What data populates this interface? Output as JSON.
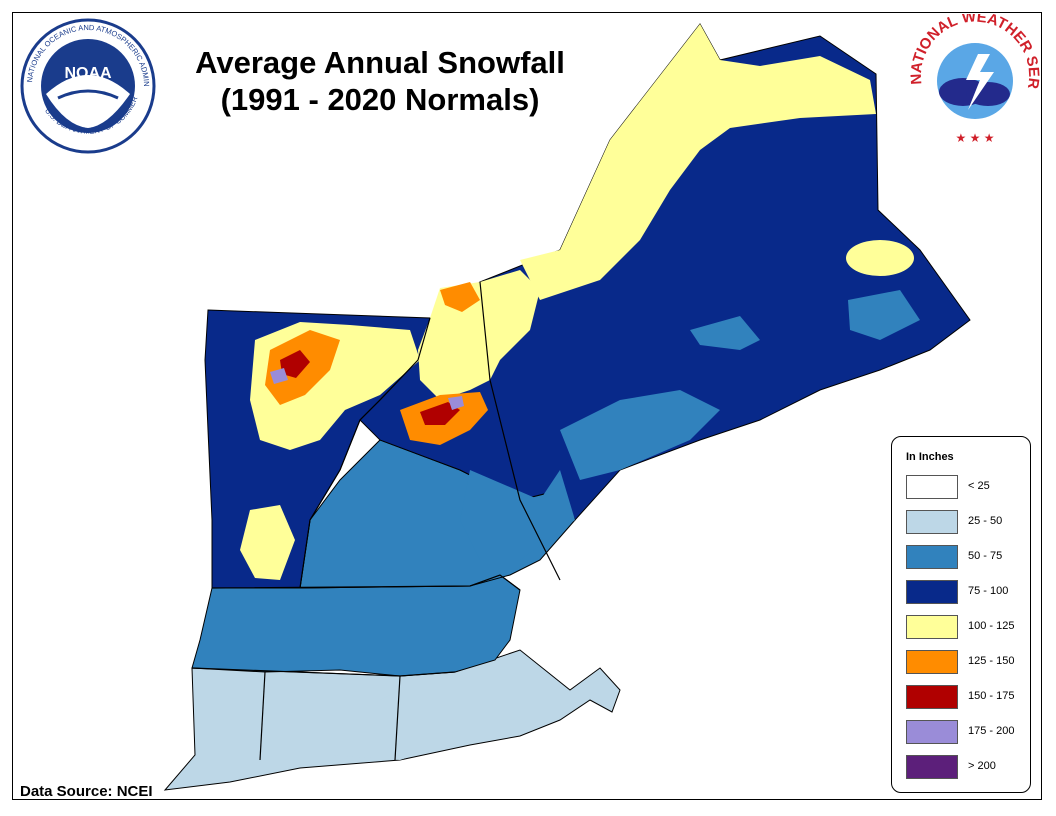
{
  "title_line1": "Average Annual Snowfall",
  "title_line2": "(1991 - 2020 Normals)",
  "source": "Data Source: NCEI",
  "noaa_logo": {
    "ring_text": "NATIONAL OCEANIC AND ATMOSPHERIC ADMINISTRATION",
    "bottom_text": "U.S. DEPARTMENT OF COMMERCE",
    "center_text": "NOAA"
  },
  "nws_logo": {
    "ring_text": "NATIONAL WEATHER SERVICE"
  },
  "legend": {
    "title": "In Inches",
    "items": [
      {
        "label": "< 25",
        "color": "#ffffff"
      },
      {
        "label": "25 - 50",
        "color": "#bdd7e7"
      },
      {
        "label": "50 - 75",
        "color": "#3182bd"
      },
      {
        "label": "75 - 100",
        "color": "#08298a"
      },
      {
        "label": "100 - 125",
        "color": "#ffff99"
      },
      {
        "label": "125 - 150",
        "color": "#ff8c00"
      },
      {
        "label": "150 - 175",
        "color": "#b00000"
      },
      {
        "label": "175 - 200",
        "color": "#9a8cd8"
      },
      {
        "label": "> 200",
        "color": "#5c1f7a"
      }
    ]
  }
}
